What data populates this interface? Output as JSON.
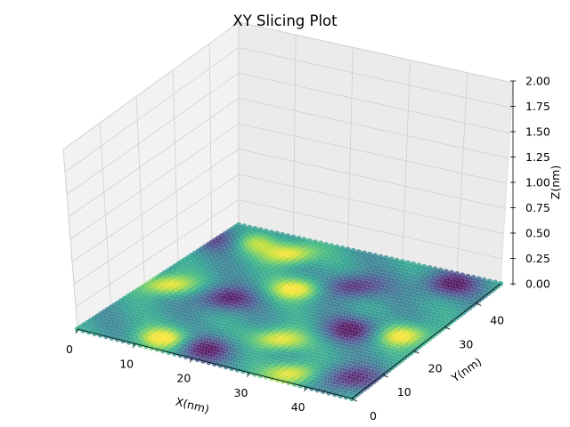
{
  "chart_data": {
    "type": "scatter",
    "title": "XY Slicing Plot",
    "xlabel": "X(nm)",
    "ylabel": "Y(nm)",
    "zlabel": "Z(nm)",
    "xlim": [
      0,
      48
    ],
    "ylim": [
      0,
      48
    ],
    "zlim": [
      0,
      2
    ],
    "x_ticks": [
      "0",
      "10",
      "20",
      "30",
      "40"
    ],
    "x_tick_values": [
      0,
      10,
      20,
      30,
      40
    ],
    "y_ticks": [
      "0",
      "10",
      "20",
      "30",
      "40"
    ],
    "y_tick_values": [
      0,
      10,
      20,
      30,
      40
    ],
    "z_ticks": [
      "0.00",
      "0.25",
      "0.50",
      "0.75",
      "1.00",
      "1.25",
      "1.50",
      "1.75",
      "2.00"
    ],
    "z_tick_values": [
      0,
      0.25,
      0.5,
      0.75,
      1.0,
      1.25,
      1.5,
      1.75,
      2.0
    ],
    "slice_z": 0,
    "grid": true,
    "colormap": "viridis",
    "pattern": {
      "description_of_values": "colour intensity across the XY plane, periodic interference pattern",
      "period_nm": 16,
      "maxima_xy": [
        [
          3,
          22
        ],
        [
          13,
          42
        ],
        [
          21,
          31
        ],
        [
          28,
          13
        ],
        [
          36,
          3
        ],
        [
          44,
          24
        ],
        [
          13,
          4
        ],
        [
          5,
          43
        ]
      ],
      "minima_xy": [
        [
          2,
          42
        ],
        [
          13,
          22
        ],
        [
          20,
          4
        ],
        [
          28,
          36
        ],
        [
          36,
          22
        ],
        [
          44,
          6
        ],
        [
          41,
          44
        ]
      ]
    }
  },
  "colors": {
    "pane_face": "#f2f2f2",
    "pane_edge": "#e0e0e0",
    "grid": "#d0d0d0",
    "viridis_low": "#440154",
    "viridis_mid": "#21908d",
    "viridis_high": "#fde725"
  }
}
